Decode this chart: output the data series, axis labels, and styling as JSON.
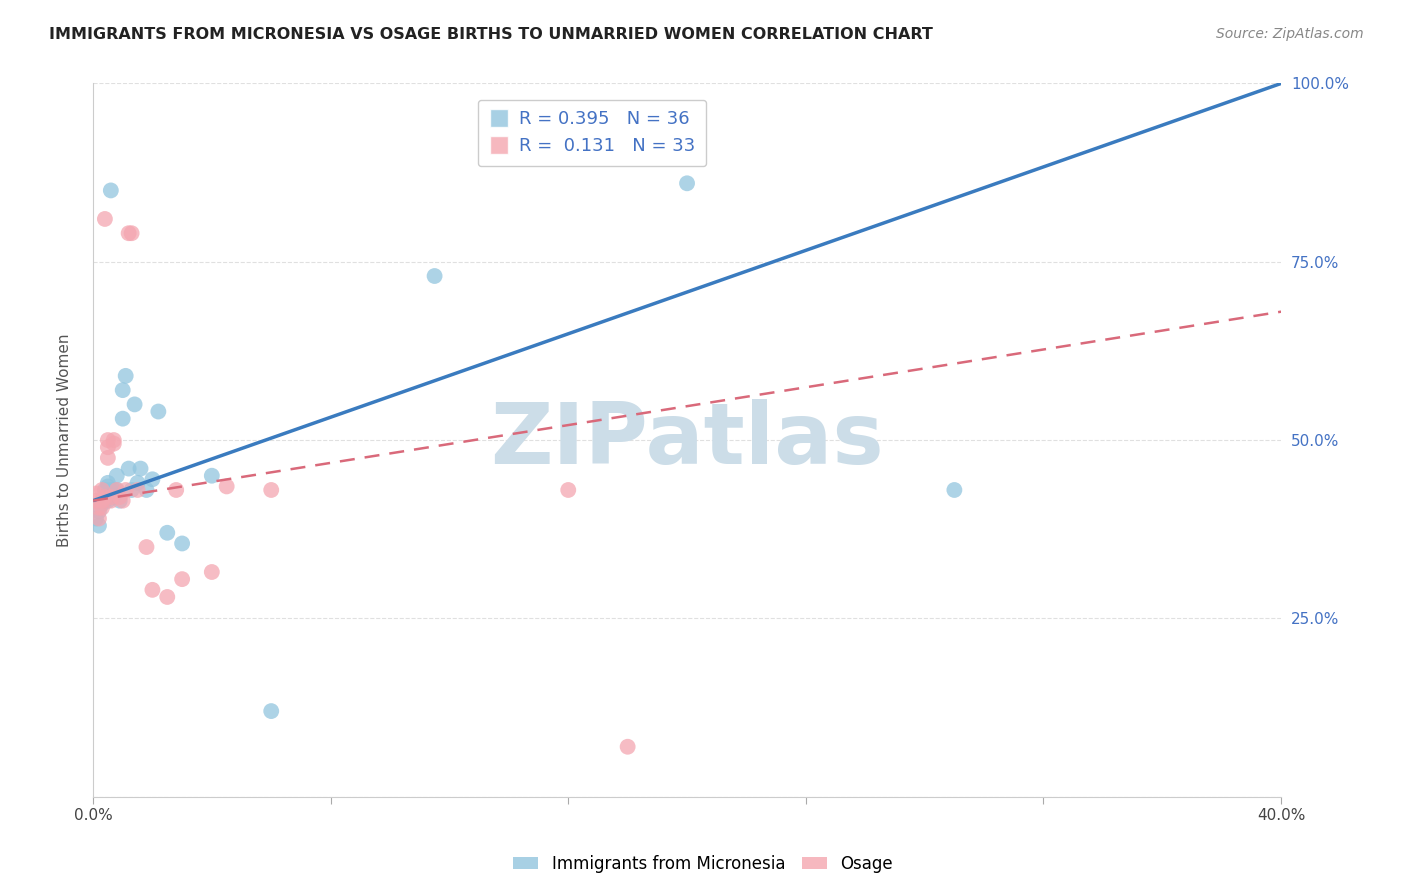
{
  "title": "IMMIGRANTS FROM MICRONESIA VS OSAGE BIRTHS TO UNMARRIED WOMEN CORRELATION CHART",
  "source": "Source: ZipAtlas.com",
  "xlabel_blue": "Immigrants from Micronesia",
  "xlabel_pink": "Osage",
  "ylabel": "Births to Unmarried Women",
  "r_blue": 0.395,
  "n_blue": 36,
  "r_pink": 0.131,
  "n_pink": 33,
  "xlim": [
    0.0,
    0.4
  ],
  "ylim": [
    0.0,
    1.0
  ],
  "xticks": [
    0.0,
    0.08,
    0.16,
    0.24,
    0.32,
    0.4
  ],
  "yticks": [
    0.0,
    0.25,
    0.5,
    0.75,
    1.0
  ],
  "xticklabels": [
    "0.0%",
    "",
    "",
    "",
    "",
    "40.0%"
  ],
  "yticklabels_right": [
    "",
    "25.0%",
    "50.0%",
    "75.0%",
    "100.0%"
  ],
  "blue_color": "#92c5de",
  "pink_color": "#f4a6b0",
  "line_blue_color": "#3a7bbf",
  "line_pink_color": "#d9697a",
  "watermark_text": "ZIPatlas",
  "watermark_color": "#ccdde8",
  "blue_line_x": [
    0.0,
    0.4
  ],
  "blue_line_y": [
    0.415,
    1.0
  ],
  "pink_line_x": [
    0.0,
    0.4
  ],
  "pink_line_y": [
    0.415,
    0.68
  ],
  "blue_points_x": [
    0.001,
    0.002,
    0.002,
    0.003,
    0.003,
    0.004,
    0.004,
    0.004,
    0.005,
    0.005,
    0.005,
    0.006,
    0.006,
    0.007,
    0.007,
    0.008,
    0.008,
    0.009,
    0.01,
    0.01,
    0.011,
    0.012,
    0.013,
    0.014,
    0.015,
    0.016,
    0.018,
    0.02,
    0.022,
    0.025,
    0.03,
    0.04,
    0.06,
    0.115,
    0.2,
    0.29
  ],
  "blue_points_y": [
    0.39,
    0.38,
    0.4,
    0.41,
    0.415,
    0.43,
    0.42,
    0.415,
    0.435,
    0.44,
    0.415,
    0.43,
    0.85,
    0.42,
    0.43,
    0.45,
    0.43,
    0.415,
    0.57,
    0.53,
    0.59,
    0.46,
    0.43,
    0.55,
    0.44,
    0.46,
    0.43,
    0.445,
    0.54,
    0.37,
    0.355,
    0.45,
    0.12,
    0.73,
    0.86,
    0.43
  ],
  "pink_points_x": [
    0.001,
    0.001,
    0.002,
    0.002,
    0.003,
    0.003,
    0.003,
    0.004,
    0.004,
    0.005,
    0.005,
    0.005,
    0.006,
    0.006,
    0.007,
    0.007,
    0.008,
    0.009,
    0.01,
    0.011,
    0.012,
    0.013,
    0.015,
    0.018,
    0.02,
    0.025,
    0.028,
    0.03,
    0.04,
    0.045,
    0.06,
    0.16,
    0.18
  ],
  "pink_points_y": [
    0.415,
    0.425,
    0.39,
    0.405,
    0.43,
    0.415,
    0.405,
    0.81,
    0.42,
    0.475,
    0.49,
    0.5,
    0.415,
    0.42,
    0.5,
    0.495,
    0.43,
    0.42,
    0.415,
    0.43,
    0.79,
    0.79,
    0.43,
    0.35,
    0.29,
    0.28,
    0.43,
    0.305,
    0.315,
    0.435,
    0.43,
    0.43,
    0.07
  ],
  "background_color": "#ffffff",
  "grid_color": "#e0e0e0"
}
